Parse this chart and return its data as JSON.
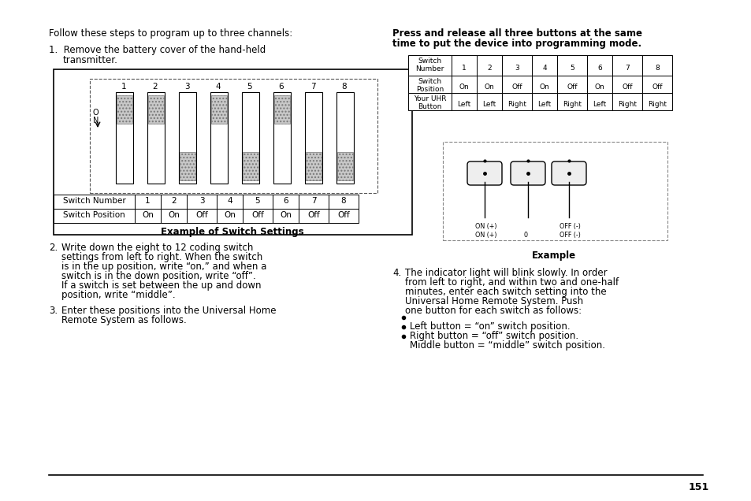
{
  "bg_color": "#ffffff",
  "text_color": "#000000",
  "page_number": "151",
  "left_column": {
    "intro": "Follow these steps to program up to three channels:",
    "switch_positions": [
      "On",
      "On",
      "Off",
      "On",
      "Off",
      "On",
      "Off",
      "Off"
    ],
    "switch_caption": "Example of Switch Settings"
  },
  "right_column": {
    "intro1": "Press and release all three buttons at the same",
    "intro2": "time to put the device into programming mode.",
    "table_row1_label": "Switch\nNumber",
    "table_row2_label": "Switch\nPosition",
    "table_row3_label": "Your UHR\nButton",
    "table_nums": [
      "1",
      "2",
      "3",
      "4",
      "5",
      "6",
      "7",
      "8"
    ],
    "table_pos": [
      "On",
      "On",
      "Off",
      "On",
      "Off",
      "On",
      "Off",
      "Off"
    ],
    "table_btn": [
      "Left",
      "Left",
      "Right",
      "Left",
      "Right",
      "Left",
      "Right",
      "Right"
    ],
    "example_caption": "Example",
    "bullets": [
      "Left button = “on” switch position.",
      "Right button = “off” switch position.",
      "Middle button = “middle” switch position."
    ]
  }
}
